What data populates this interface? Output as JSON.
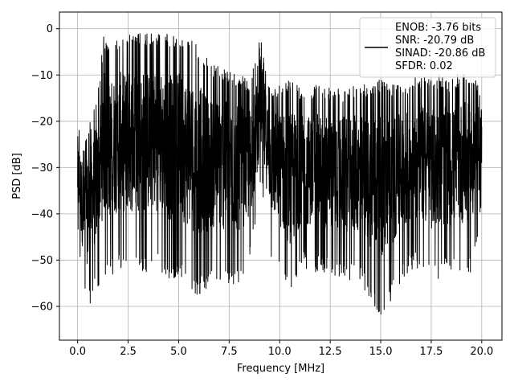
{
  "chart_data": {
    "type": "line",
    "title": "",
    "xlabel": "Frequency [MHz]",
    "ylabel": "PSD [dB]",
    "xlim": [
      -0.9,
      21.0
    ],
    "ylim": [
      -67.3,
      3.6
    ],
    "xticks": [
      0.0,
      2.5,
      5.0,
      7.5,
      10.0,
      12.5,
      15.0,
      17.5,
      20.0
    ],
    "xtick_labels": [
      "0.0",
      "2.5",
      "5.0",
      "7.5",
      "10.0",
      "12.5",
      "15.0",
      "17.5",
      "20.0"
    ],
    "yticks": [
      0,
      -10,
      -20,
      -30,
      -40,
      -50,
      -60
    ],
    "ytick_labels": [
      "0",
      "−10",
      "−20",
      "−30",
      "−40",
      "−50",
      "−60"
    ],
    "grid": true,
    "legend_position": "top-right",
    "legend_entries": [
      "ENOB: -3.76 bits",
      "SNR: -20.79 dB",
      "SINAD: -20.86 dB",
      "SFDR: 0.02"
    ],
    "series": [
      {
        "color": "#000000",
        "x_range": [
          0.0,
          20.0
        ],
        "envelope_points": [
          {
            "x": 0.0,
            "upper": -19,
            "lower": -46
          },
          {
            "x": 0.3,
            "upper": -25,
            "lower": -57
          },
          {
            "x": 0.5,
            "upper": -22,
            "lower": -61
          },
          {
            "x": 1.0,
            "upper": -13,
            "lower": -56
          },
          {
            "x": 1.3,
            "upper": -1,
            "lower": -53
          },
          {
            "x": 1.5,
            "upper": -4,
            "lower": -54
          },
          {
            "x": 2.0,
            "upper": -2,
            "lower": -52
          },
          {
            "x": 2.5,
            "upper": -1,
            "lower": -53
          },
          {
            "x": 3.0,
            "upper": -1,
            "lower": -52
          },
          {
            "x": 3.5,
            "upper": -1,
            "lower": -53
          },
          {
            "x": 4.0,
            "upper": -1,
            "lower": -52
          },
          {
            "x": 4.5,
            "upper": -1,
            "lower": -55
          },
          {
            "x": 5.0,
            "upper": -2,
            "lower": -53
          },
          {
            "x": 5.5,
            "upper": -2,
            "lower": -57
          },
          {
            "x": 6.0,
            "upper": -4,
            "lower": -58
          },
          {
            "x": 6.5,
            "upper": -7,
            "lower": -56
          },
          {
            "x": 7.0,
            "upper": -8,
            "lower": -55
          },
          {
            "x": 7.5,
            "upper": -9,
            "lower": -56
          },
          {
            "x": 8.0,
            "upper": -10,
            "lower": -55
          },
          {
            "x": 8.5,
            "upper": -11,
            "lower": -52
          },
          {
            "x": 8.9,
            "upper": -6,
            "lower": -40
          },
          {
            "x": 9.05,
            "upper": 0,
            "lower": -33
          },
          {
            "x": 9.3,
            "upper": -8,
            "lower": -42
          },
          {
            "x": 9.6,
            "upper": -12,
            "lower": -50
          },
          {
            "x": 10.0,
            "upper": -12,
            "lower": -53
          },
          {
            "x": 10.6,
            "upper": -10,
            "lower": -60
          },
          {
            "x": 11.0,
            "upper": -13,
            "lower": -52
          },
          {
            "x": 12.0,
            "upper": -12,
            "lower": -53
          },
          {
            "x": 13.0,
            "upper": -13,
            "lower": -54
          },
          {
            "x": 14.0,
            "upper": -12,
            "lower": -55
          },
          {
            "x": 15.0,
            "upper": -11,
            "lower": -63
          },
          {
            "x": 16.0,
            "upper": -12,
            "lower": -55
          },
          {
            "x": 16.5,
            "upper": -11,
            "lower": -52
          },
          {
            "x": 17.0,
            "upper": -10,
            "lower": -52
          },
          {
            "x": 17.5,
            "upper": -11,
            "lower": -54
          },
          {
            "x": 18.0,
            "upper": -10,
            "lower": -54
          },
          {
            "x": 18.5,
            "upper": -11,
            "lower": -53
          },
          {
            "x": 19.0,
            "upper": -9,
            "lower": -53
          },
          {
            "x": 19.5,
            "upper": -10,
            "lower": -53
          },
          {
            "x": 20.0,
            "upper": -12,
            "lower": -40
          }
        ]
      }
    ]
  }
}
